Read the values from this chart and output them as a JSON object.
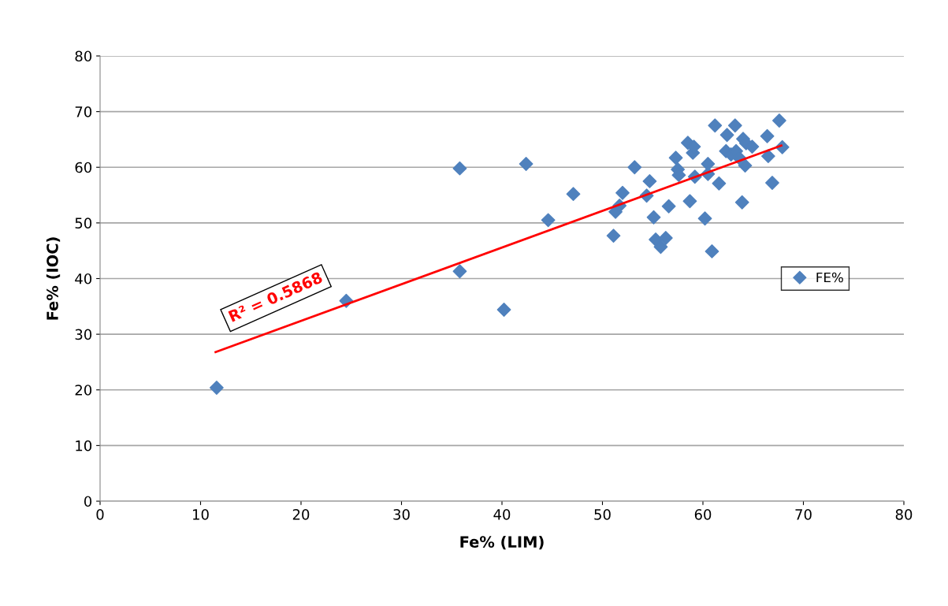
{
  "chart_data": {
    "type": "scatter",
    "xlabel": "Fe% (LIM)",
    "ylabel": "Fe% (IOC)",
    "xlim": [
      0,
      80
    ],
    "ylim": [
      0,
      80
    ],
    "xticks": [
      0,
      10,
      20,
      30,
      40,
      50,
      60,
      70,
      80
    ],
    "yticks": [
      0,
      10,
      20,
      30,
      40,
      50,
      60,
      70,
      80
    ],
    "grid": "y",
    "legend": "right",
    "annotations": [
      "R² = 0.5868"
    ],
    "series": [
      {
        "name": "FE%",
        "marker": "diamond",
        "color": "#4f81bd",
        "x": [
          11.6,
          24.5,
          35.8,
          35.8,
          40.2,
          42.4,
          44.6,
          47.1,
          51.1,
          51.3,
          51.7,
          52.0,
          53.2,
          54.4,
          54.7,
          55.1,
          55.3,
          55.8,
          56.3,
          56.6,
          57.3,
          57.5,
          57.6,
          58.5,
          58.7,
          59.0,
          59.1,
          59.2,
          60.2,
          60.5,
          60.5,
          60.9,
          61.2,
          61.6,
          62.3,
          62.4,
          62.8,
          63.2,
          63.3,
          63.6,
          63.9,
          64.0,
          64.2,
          64.3,
          64.9,
          66.4,
          66.5,
          66.9,
          67.6,
          67.9
        ],
        "values": [
          20.4,
          36.0,
          59.8,
          41.3,
          34.4,
          60.6,
          50.5,
          55.2,
          47.7,
          52.0,
          53.1,
          55.4,
          60.0,
          54.9,
          57.5,
          51.0,
          47.0,
          45.7,
          47.3,
          53.0,
          61.7,
          59.6,
          58.6,
          64.4,
          53.9,
          62.6,
          63.7,
          58.3,
          50.8,
          60.6,
          58.8,
          44.9,
          67.5,
          57.1,
          62.9,
          65.8,
          62.3,
          67.5,
          62.9,
          61.7,
          53.7,
          65.1,
          60.3,
          64.3,
          63.7,
          65.6,
          62.0,
          57.2,
          68.4,
          63.6
        ]
      },
      {
        "type": "line",
        "marker": "none",
        "color": "#ff0000",
        "x": [
          11.5,
          67.8
        ],
        "values": [
          26.8,
          63.9
        ]
      }
    ]
  }
}
